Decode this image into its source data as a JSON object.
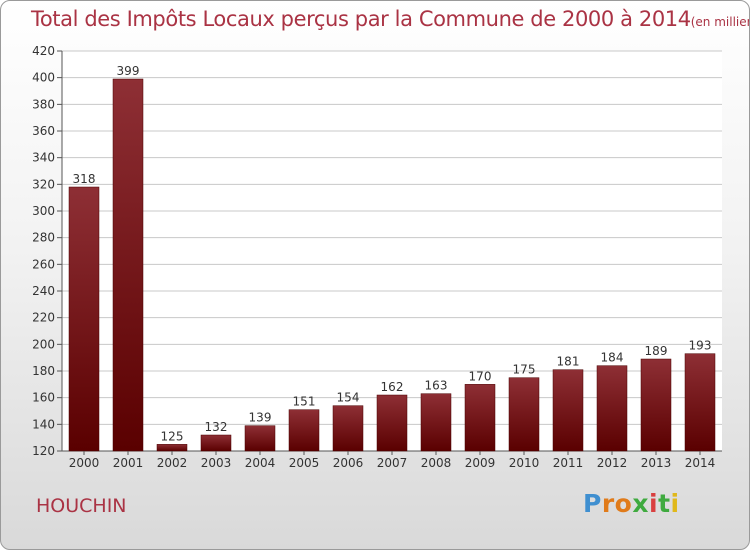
{
  "title": "Total des Impôts Locaux perçus par la Commune de 2000 à 2014",
  "unit_label": "(en milliers d'€)",
  "commune": "HOUCHIN",
  "logo": {
    "letters": [
      "P",
      "r",
      "o",
      "x",
      "i",
      "t",
      "i"
    ]
  },
  "colors": {
    "bar_top": "#8e2f35",
    "bar_bottom": "#5a0000",
    "title": "#aa3344",
    "grid": "#c8c8c8"
  },
  "chart_data": {
    "type": "bar",
    "title": "Total des Impôts Locaux perçus par la Commune de 2000 à 2014",
    "categories": [
      "2000",
      "2001",
      "2002",
      "2003",
      "2004",
      "2005",
      "2006",
      "2007",
      "2008",
      "2009",
      "2010",
      "2011",
      "2012",
      "2013",
      "2014"
    ],
    "values": [
      318,
      399,
      125,
      132,
      139,
      151,
      154,
      162,
      163,
      170,
      175,
      181,
      184,
      189,
      193
    ],
    "ylim": [
      120,
      420
    ],
    "yticks": [
      120,
      140,
      160,
      180,
      200,
      220,
      240,
      260,
      280,
      300,
      320,
      340,
      360,
      380,
      400,
      420
    ],
    "grid": true,
    "legend": "none"
  }
}
